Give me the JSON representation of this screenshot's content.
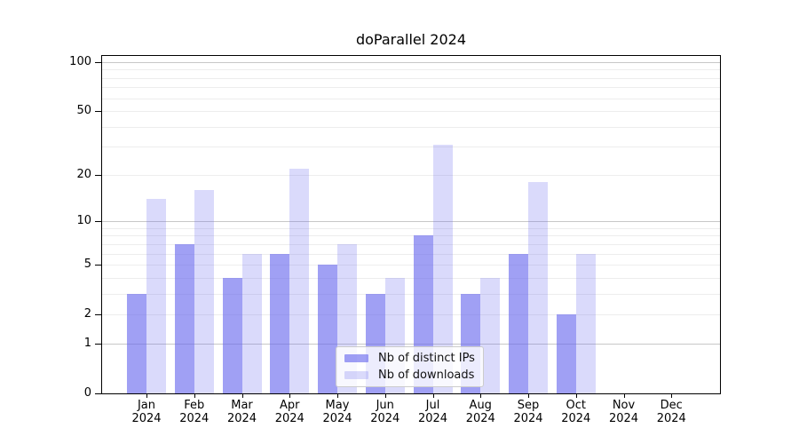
{
  "title": "doParallel 2024",
  "colors": {
    "background": "#ffffff",
    "frame": "#000000",
    "grid_minor": "#ededed",
    "grid_major": "#c8c8c8",
    "bar_dark": "rgba(102,102,238,0.62)",
    "bar_light": "rgba(102,102,238,0.24)"
  },
  "legend": {
    "items": [
      {
        "label": "Nb of distinct IPs",
        "color": "rgba(102,102,238,0.62)"
      },
      {
        "label": "Nb of downloads",
        "color": "rgba(102,102,238,0.24)"
      }
    ]
  },
  "chart_data": {
    "type": "bar",
    "title": "doParallel 2024",
    "xlabel": "",
    "ylabel": "",
    "yscale": "log1p",
    "ylim": [
      0,
      110
    ],
    "grid": true,
    "legend_position": "lower center",
    "categories": [
      "Jan",
      "Feb",
      "Mar",
      "Apr",
      "May",
      "Jun",
      "Jul",
      "Aug",
      "Sep",
      "Oct",
      "Nov",
      "Dec"
    ],
    "year_label": "2024",
    "yticks": [
      0,
      1,
      2,
      5,
      10,
      20,
      50,
      100
    ],
    "grid_minor_values": [
      2,
      3,
      4,
      5,
      6,
      7,
      8,
      9,
      20,
      30,
      40,
      50,
      60,
      70,
      80,
      90
    ],
    "grid_major_values": [
      1,
      10,
      100
    ],
    "series": [
      {
        "name": "Nb of distinct IPs",
        "color": "rgba(102,102,238,0.62)",
        "values": [
          3,
          7,
          4,
          6,
          5,
          3,
          8,
          3,
          6,
          2,
          0,
          0
        ]
      },
      {
        "name": "Nb of downloads",
        "color": "rgba(102,102,238,0.24)",
        "values": [
          14,
          16,
          6,
          22,
          7,
          4,
          31,
          4,
          18,
          6,
          0,
          0
        ]
      }
    ]
  }
}
